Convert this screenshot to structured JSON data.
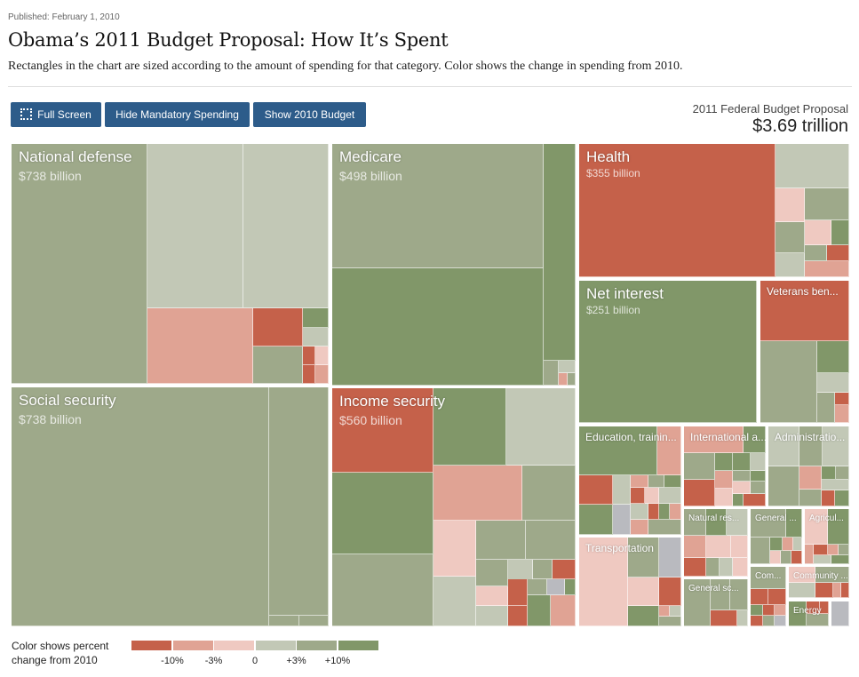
{
  "header": {
    "published": "Published: February 1, 2010",
    "title": "Obama’s 2011 Budget Proposal: How It’s Spent",
    "subtitle": "Rectangles in the chart are sized according to the amount of spending for that category. Color shows the change in spending from 2010."
  },
  "toolbar": {
    "full_screen": "Full Screen",
    "hide_mandatory": "Hide Mandatory Spending",
    "show_2010": "Show 2010 Budget",
    "full_screen_icon": "fullscreen-icon"
  },
  "total": {
    "label": "2011 Federal Budget Proposal",
    "value": "$3.69 trillion"
  },
  "chart_data": {
    "type": "treemap",
    "total": "$3.69 trillion",
    "categories": [
      {
        "label": "National defense",
        "amount": "$738 billion"
      },
      {
        "label": "Social security",
        "amount": "$738 billion"
      },
      {
        "label": "Medicare",
        "amount": "$498 billion"
      },
      {
        "label": "Income security",
        "amount": "$560 billion"
      },
      {
        "label": "Health",
        "amount": "$355 billion"
      },
      {
        "label": "Net interest",
        "amount": "$251 billion"
      },
      {
        "label": "Veterans ben..."
      },
      {
        "label": "Education, trainin..."
      },
      {
        "label": "International a..."
      },
      {
        "label": "Administratio..."
      },
      {
        "label": "Transportation"
      },
      {
        "label": "Natural res..."
      },
      {
        "label": "General ..."
      },
      {
        "label": "Agricul..."
      },
      {
        "label": "General sc..."
      },
      {
        "label": "Com..."
      },
      {
        "label": "Community ..."
      },
      {
        "label": "Energy"
      },
      {
        "label": ""
      }
    ],
    "legend": {
      "title": "Color shows percent change from 2010",
      "ticks": [
        "-10%",
        "-3%",
        "0",
        "+3%",
        "+10%"
      ],
      "colors": [
        "#c5614a",
        "#e0a394",
        "#efc9c1",
        "#c2c8b6",
        "#9ea98a",
        "#819769"
      ]
    },
    "other_color": "#b9babf"
  }
}
